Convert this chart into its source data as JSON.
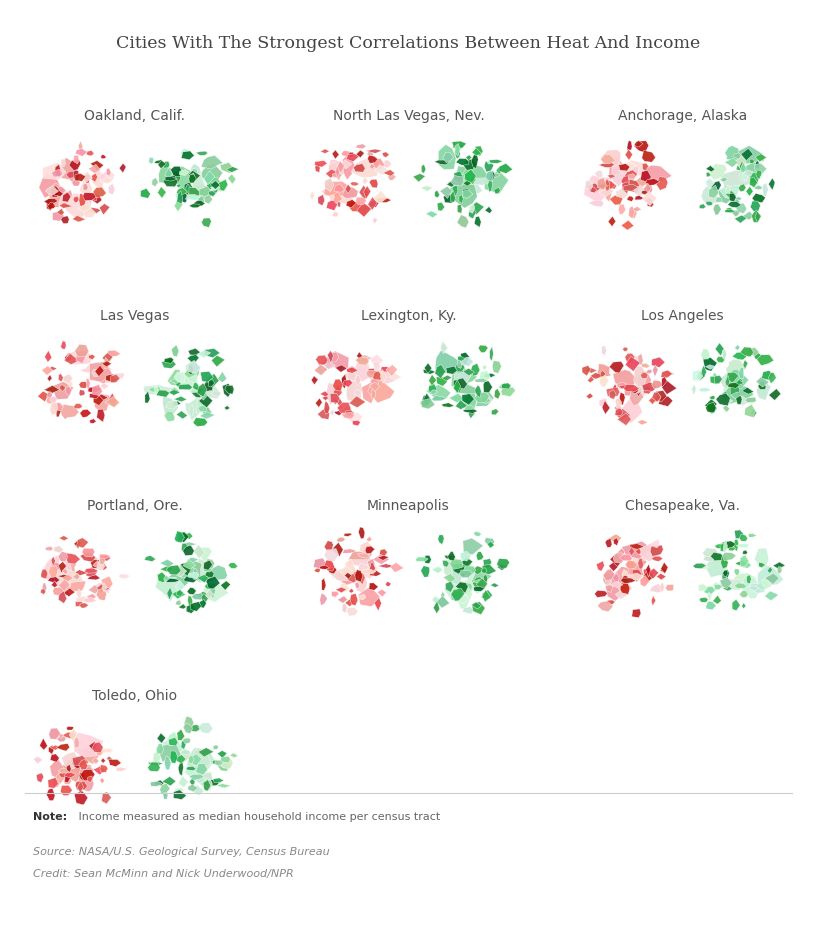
{
  "title": "Cities With The Strongest Correlations Between Heat And Income",
  "title_fontsize": 12.5,
  "background_color": "#ffffff",
  "cities": [
    {
      "name": "Oakland, Calif.",
      "row": 0,
      "col": 0,
      "heat_seed": 10,
      "income_seed": 20
    },
    {
      "name": "North Las Vegas, Nev.",
      "row": 0,
      "col": 1,
      "heat_seed": 30,
      "income_seed": 40
    },
    {
      "name": "Anchorage, Alaska",
      "row": 0,
      "col": 2,
      "heat_seed": 50,
      "income_seed": 60
    },
    {
      "name": "Las Vegas",
      "row": 1,
      "col": 0,
      "heat_seed": 70,
      "income_seed": 80
    },
    {
      "name": "Lexington, Ky.",
      "row": 1,
      "col": 1,
      "heat_seed": 90,
      "income_seed": 100
    },
    {
      "name": "Los Angeles",
      "row": 1,
      "col": 2,
      "heat_seed": 110,
      "income_seed": 120
    },
    {
      "name": "Portland, Ore.",
      "row": 2,
      "col": 0,
      "heat_seed": 130,
      "income_seed": 140
    },
    {
      "name": "Minneapolis",
      "row": 2,
      "col": 1,
      "heat_seed": 150,
      "income_seed": 160
    },
    {
      "name": "Chesapeake, Va.",
      "row": 2,
      "col": 2,
      "heat_seed": 170,
      "income_seed": 180
    },
    {
      "name": "Toledo, Ohio",
      "row": 3,
      "col": 0,
      "heat_seed": 190,
      "income_seed": 200
    }
  ],
  "note_bold": "Note:",
  "note_text": " Income measured as median household income per census tract",
  "source_text": "Source: NASA/U.S. Geological Survey, Census Bureau",
  "credit_text": "Credit: Sean McMinn and Nick Underwood/NPR",
  "note_fontsize": 8,
  "source_fontsize": 8,
  "text_color": "#666666",
  "title_color": "#444444",
  "red_dark": "#b81c1c",
  "red_mid": "#e05252",
  "red_light": "#f4a0a0",
  "red_pale": "#fcd5d5",
  "green_dark": "#0a6e2a",
  "green_mid": "#2ea84e",
  "green_light": "#88d4a0",
  "green_pale": "#c8ecd4"
}
